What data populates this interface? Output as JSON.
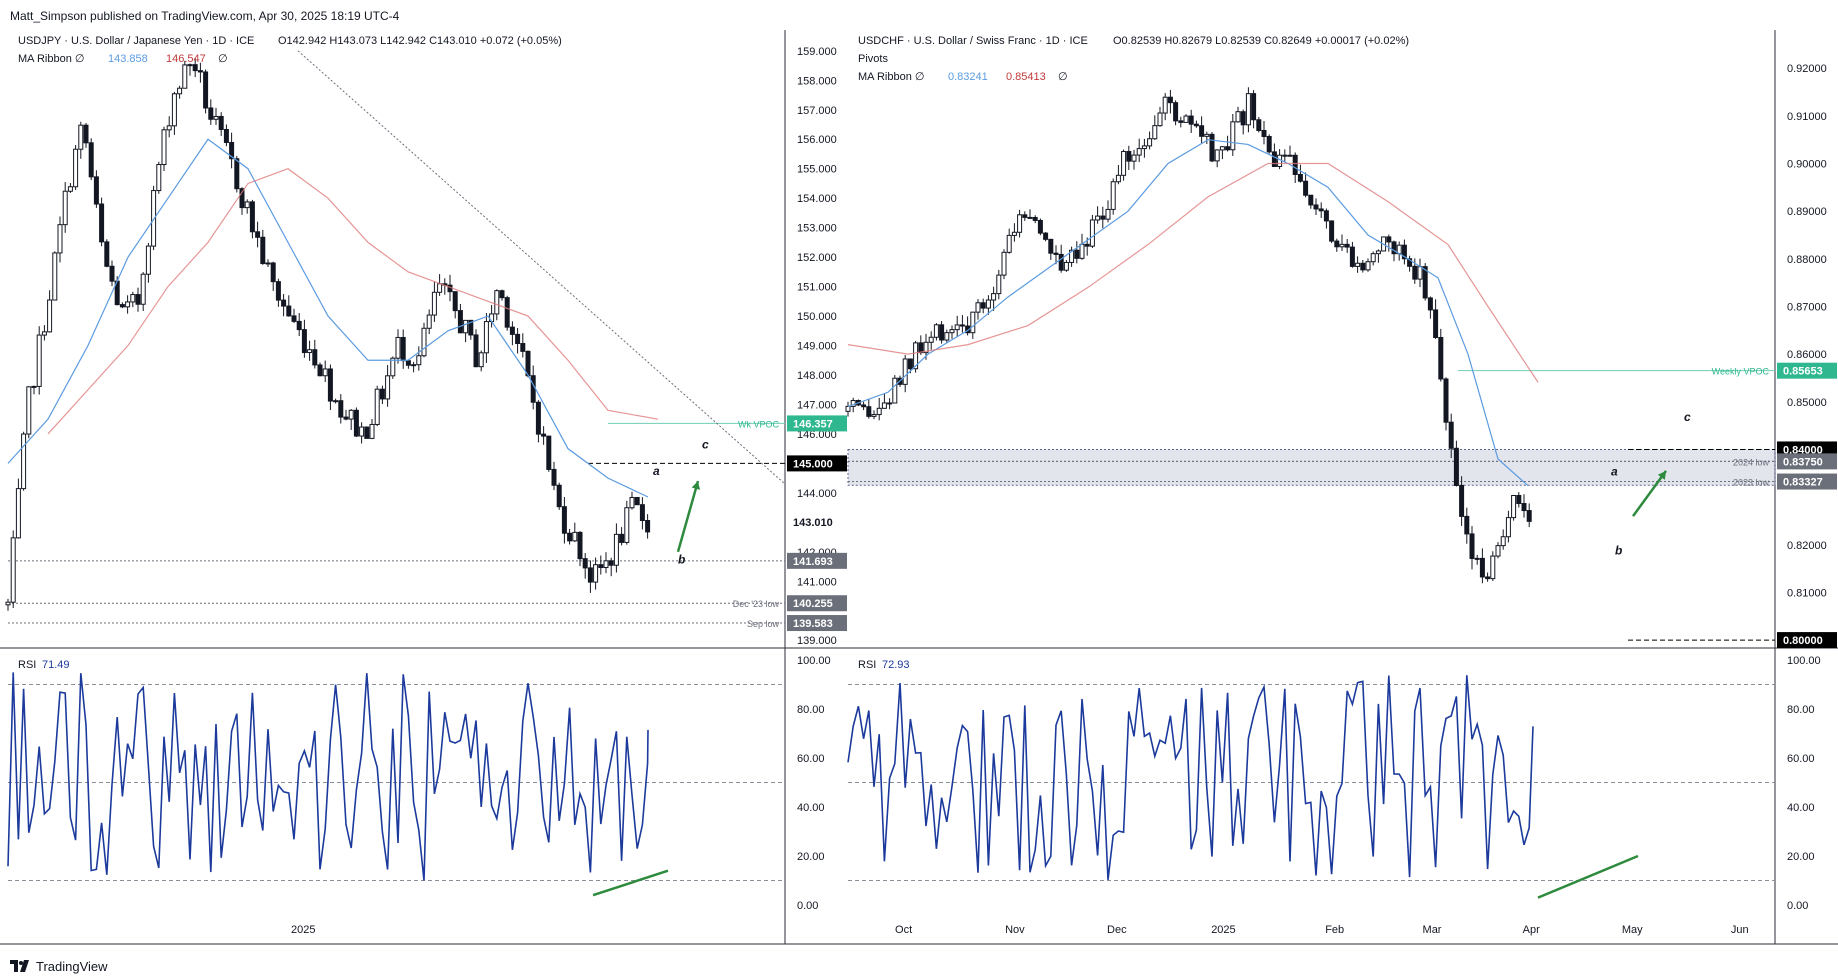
{
  "header": {
    "published": "Matt_Simpson published on TradingView.com, Apr 30, 2025 18:19 UTC-4"
  },
  "footer": {
    "brand": "TradingView",
    "logo_icon": "tradingview-logo-icon"
  },
  "colors": {
    "up": "#ffffff",
    "down": "#131722",
    "ma_fast": "#5b9be0",
    "ma_slow": "#e07b7b",
    "rsi": "#1c3a9c",
    "arrow": "#2e8b3e",
    "vpoc": "#6fcfb2"
  },
  "chart_data": [
    {
      "type": "candlestick",
      "id": "usdjpy",
      "title": "USDJPY · U.S. Dollar / Japanese Yen · 1D · ICE",
      "ohlc_text": {
        "o": "O142.942",
        "h": "H143.073",
        "l": "L142.942",
        "c": "C143.010",
        "chg": "+0.072 (+0.05%)"
      },
      "indicator_label": "MA Ribbon",
      "ma_values": [
        "143.858",
        "146.547"
      ],
      "y_ticks": [
        "159.000",
        "158.000",
        "157.000",
        "156.000",
        "155.000",
        "154.000",
        "153.000",
        "152.000",
        "151.000",
        "150.000",
        "149.000",
        "148.000",
        "147.000",
        "146.000",
        "144.000",
        "143.000",
        "142.000",
        "141.000",
        "139.000"
      ],
      "ylim": [
        138.6,
        159.3
      ],
      "x_labels": [
        {
          "label": "2025",
          "pos": 0.38
        }
      ],
      "price_badges": [
        {
          "value": "146.357",
          "y": 146.357,
          "color": "#2fb88f",
          "note": "Wk VPOC"
        },
        {
          "value": "145.000",
          "y": 145.0,
          "color": "#000000",
          "note": ""
        },
        {
          "value": "143.010",
          "y": 143.01,
          "color": "#ffffff",
          "note": ""
        },
        {
          "value": "141.693",
          "y": 141.693,
          "color": "#6b6f7a",
          "note": ""
        },
        {
          "value": "140.255",
          "y": 140.255,
          "color": "#6b6f7a",
          "note": "Dec '23 low"
        },
        {
          "value": "139.583",
          "y": 139.583,
          "color": "#6b6f7a",
          "note": "Sep low"
        }
      ],
      "wave_labels": [
        "a",
        "b",
        "c"
      ],
      "rsi": {
        "label": "RSI",
        "value": "71.49",
        "ticks": [
          "100.00",
          "80.00",
          "60.00",
          "40.00",
          "20.00",
          "0.00"
        ]
      }
    },
    {
      "type": "candlestick",
      "id": "usdchf",
      "title": "USDCHF · U.S. Dollar / Swiss Franc · 1D · ICE",
      "ohlc_text": {
        "o": "O0.82539",
        "h": "H0.82679",
        "l": "L0.82539",
        "c": "C0.82649",
        "chg": "+0.00017 (+0.02%)"
      },
      "pivots_label": "Pivots",
      "indicator_label": "MA Ribbon",
      "ma_values": [
        "0.83241",
        "0.85413"
      ],
      "y_ticks": [
        "0.92000",
        "0.91000",
        "0.90000",
        "0.89000",
        "0.88000",
        "0.87000",
        "0.86000",
        "0.85000",
        "0.82000",
        "0.81000"
      ],
      "ylim": [
        0.7975,
        0.9255
      ],
      "x_labels": [
        {
          "label": "Oct",
          "pos": 0.06
        },
        {
          "label": "Nov",
          "pos": 0.18
        },
        {
          "label": "Dec",
          "pos": 0.29
        },
        {
          "label": "2025",
          "pos": 0.405
        },
        {
          "label": "Feb",
          "pos": 0.525
        },
        {
          "label": "Mar",
          "pos": 0.63
        },
        {
          "label": "Apr",
          "pos": 0.737
        },
        {
          "label": "May",
          "pos": 0.846
        },
        {
          "label": "Jun",
          "pos": 0.962
        }
      ],
      "price_badges": [
        {
          "value": "0.85653",
          "y": 0.85653,
          "color": "#2fb88f",
          "note": "Weekly VPOC"
        },
        {
          "value": "0.84000",
          "y": 0.84,
          "color": "#000000",
          "note": ""
        },
        {
          "value": "0.83750",
          "y": 0.8375,
          "color": "#6b6f7a",
          "note": "2024 low"
        },
        {
          "value": "0.83327",
          "y": 0.83327,
          "color": "#6b6f7a",
          "note": "2023 low"
        },
        {
          "value": "0.80000",
          "y": 0.8,
          "color": "#000000",
          "note": ""
        }
      ],
      "wave_labels": [
        "a",
        "b",
        "c"
      ],
      "rsi": {
        "label": "RSI",
        "value": "72.93",
        "ticks": [
          "100.00",
          "80.00",
          "60.00",
          "40.00",
          "20.00",
          "0.00"
        ]
      }
    }
  ]
}
